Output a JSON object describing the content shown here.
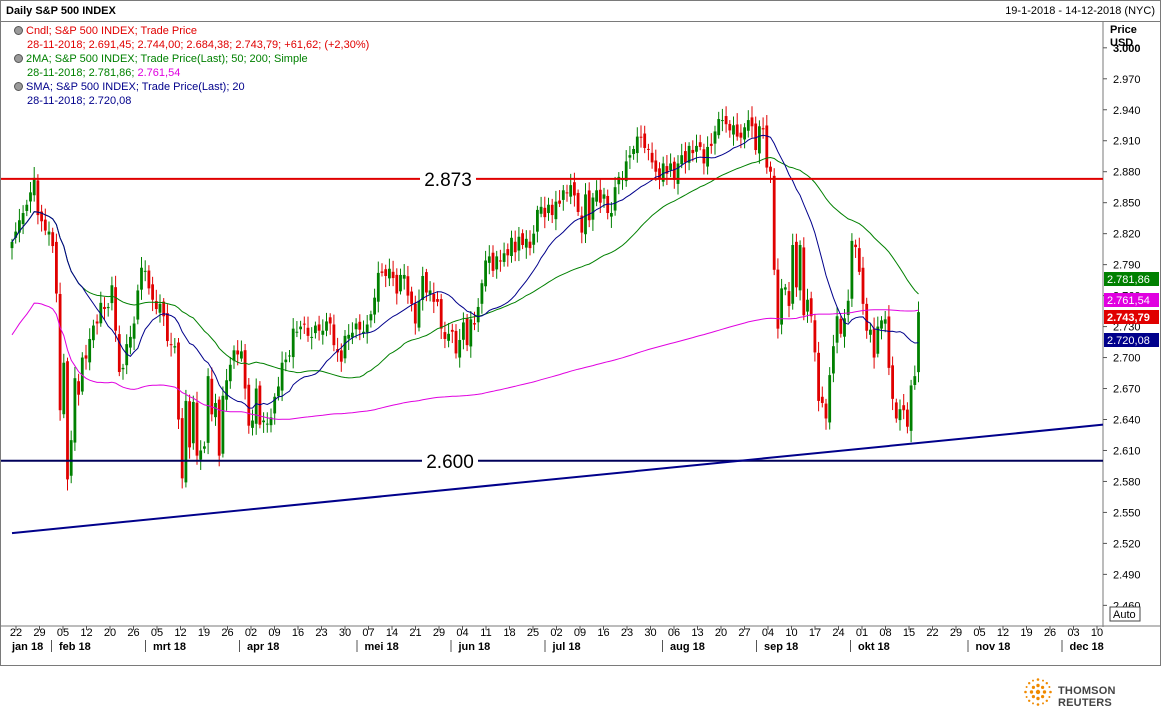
{
  "header": {
    "title": "Daily S&P 500 INDEX",
    "date_range": "19-1-2018 - 14-12-2018 (NYC)"
  },
  "legend": [
    {
      "title": "Cndl; S&P 500 INDEX; Trade Price",
      "details": [
        {
          "text": "28-11-2018; 2.691,45; 2.744,00; 2.684,38; 2.743,79; +61,62; (+2,30%)",
          "color": "#e00000"
        }
      ],
      "color": "#e00000"
    },
    {
      "title": "2MA; S&P 500 INDEX; Trade Price(Last);  50; 200; Simple",
      "details": [
        {
          "text": "28-11-2018; 2.781,86; ",
          "color": "#008000"
        },
        {
          "text": "2.761,54",
          "color": "#e000e0"
        }
      ],
      "color": "#008000"
    },
    {
      "title": "SMA; S&P 500 INDEX; Trade Price(Last);  20",
      "details": [
        {
          "text": "28-11-2018; 2.720,08",
          "color": "#00008b"
        }
      ],
      "color": "#00008b"
    }
  ],
  "axis": {
    "price_label": "Price",
    "currency": "USD",
    "auto_button": "Auto"
  },
  "colors": {
    "up": "#008000",
    "down": "#e00000",
    "ma20": "#00008b",
    "ma50": "#008000",
    "ma200": "#e000e0",
    "resistance": "#e00000",
    "support": "#00005a",
    "trendline": "#00008b"
  },
  "footer": {
    "brand": "THOMSON REUTERS"
  },
  "chart_data": {
    "type": "candlestick",
    "title": "Daily S&P 500 INDEX",
    "ylabel": "Price USD",
    "ylim": [
      2440,
      3025
    ],
    "y_ticks": [
      "2.460",
      "2.490",
      "2.520",
      "2.550",
      "2.580",
      "2.610",
      "2.640",
      "2.670",
      "2.700",
      "2.730",
      "2.760",
      "2.790",
      "2.820",
      "2.850",
      "2.880",
      "2.910",
      "2.940",
      "2.970",
      "3.000"
    ],
    "x_day_labels": [
      "22",
      "29",
      "05",
      "12",
      "20",
      "26",
      "05",
      "12",
      "19",
      "26",
      "02",
      "09",
      "16",
      "23",
      "30",
      "07",
      "14",
      "21",
      "29",
      "04",
      "11",
      "18",
      "25",
      "02",
      "09",
      "16",
      "23",
      "30",
      "06",
      "13",
      "20",
      "27",
      "04",
      "10",
      "17",
      "24",
      "01",
      "08",
      "15",
      "22",
      "29",
      "05",
      "12",
      "19",
      "26",
      "03",
      "10"
    ],
    "x_month_labels": [
      "jan 18",
      "feb 18",
      "mrt 18",
      "apr 18",
      "mei 18",
      "jun 18",
      "jul 18",
      "aug 18",
      "sep 18",
      "okt 18",
      "nov 18",
      "dec 18"
    ],
    "last_date": "28-11-2018",
    "last_candle": {
      "open": 2691.45,
      "high": 2744.0,
      "low": 2684.38,
      "close": 2743.79,
      "change": 61.62,
      "change_pct": 2.3
    },
    "horizontal_lines": [
      {
        "value": 2873,
        "label": "2.873",
        "color": "resistance"
      },
      {
        "value": 2600,
        "label": "2.600",
        "color": "support"
      }
    ],
    "trendline": {
      "from": [
        "22-01-2018",
        2530
      ],
      "to": [
        "14-12-2018",
        2635
      ]
    },
    "price_tags": [
      {
        "name": "ma50",
        "value": 2781.86,
        "label": "2.781,86",
        "bg": "#008000"
      },
      {
        "name": "ma200",
        "value": 2761.54,
        "label": "2.761,54",
        "bg": "#e000e0"
      },
      {
        "name": "close",
        "value": 2743.79,
        "label": "2.743,79",
        "bg": "#e00000"
      },
      {
        "name": "ma20",
        "value": 2720.08,
        "label": "2.720,08",
        "bg": "#00008b"
      }
    ],
    "closes": [
      2812,
      2822,
      2833,
      2840,
      2848,
      2860,
      2874,
      2838,
      2832,
      2823,
      2822,
      2808,
      2762,
      2649,
      2695,
      2582,
      2620,
      2680,
      2664,
      2700,
      2699,
      2718,
      2731,
      2733,
      2753,
      2747,
      2749,
      2770,
      2726,
      2686,
      2690,
      2713,
      2720,
      2733,
      2765,
      2787,
      2784,
      2767,
      2756,
      2747,
      2752,
      2740,
      2716,
      2712,
      2711,
      2640,
      2583,
      2658,
      2613,
      2657,
      2605,
      2610,
      2614,
      2682,
      2645,
      2656,
      2605,
      2663,
      2678,
      2693,
      2707,
      2703,
      2706,
      2670,
      2634,
      2639,
      2670,
      2635,
      2639,
      2636,
      2642,
      2662,
      2672,
      2695,
      2698,
      2702,
      2728,
      2725,
      2730,
      2732,
      2721,
      2720,
      2731,
      2726,
      2726,
      2735,
      2733,
      2712,
      2705,
      2696,
      2721,
      2722,
      2724,
      2733,
      2727,
      2725,
      2732,
      2742,
      2758,
      2782,
      2782,
      2779,
      2786,
      2777,
      2762,
      2780,
      2780,
      2760,
      2752,
      2733,
      2755,
      2779,
      2763,
      2765,
      2754,
      2754,
      2728,
      2718,
      2723,
      2725,
      2704,
      2717,
      2734,
      2712,
      2737,
      2732,
      2749,
      2772,
      2794,
      2798,
      2784,
      2798,
      2793,
      2801,
      2799,
      2816,
      2802,
      2817,
      2809,
      2815,
      2806,
      2820,
      2843,
      2846,
      2836,
      2848,
      2838,
      2851,
      2849,
      2862,
      2859,
      2867,
      2857,
      2841,
      2821,
      2858,
      2833,
      2855,
      2862,
      2850,
      2858,
      2840,
      2840,
      2865,
      2875,
      2873,
      2890,
      2896,
      2902,
      2914,
      2913,
      2903,
      2902,
      2889,
      2880,
      2873,
      2888,
      2878,
      2888,
      2872,
      2888,
      2896,
      2889,
      2905,
      2898,
      2905,
      2904,
      2888,
      2904,
      2905,
      2919,
      2931,
      2930,
      2926,
      2920,
      2925,
      2914,
      2913,
      2923,
      2930,
      2924,
      2901,
      2924,
      2921,
      2884,
      2880,
      2785,
      2728,
      2767,
      2768,
      2750,
      2809,
      2768,
      2809,
      2741,
      2756,
      2740,
      2705,
      2658,
      2656,
      2641,
      2683,
      2711,
      2740,
      2723,
      2738,
      2755,
      2813,
      2807,
      2783,
      2752,
      2726,
      2727,
      2700,
      2730,
      2736,
      2737,
      2690,
      2660,
      2641,
      2650,
      2649,
      2633,
      2673,
      2682,
      2744
    ]
  }
}
